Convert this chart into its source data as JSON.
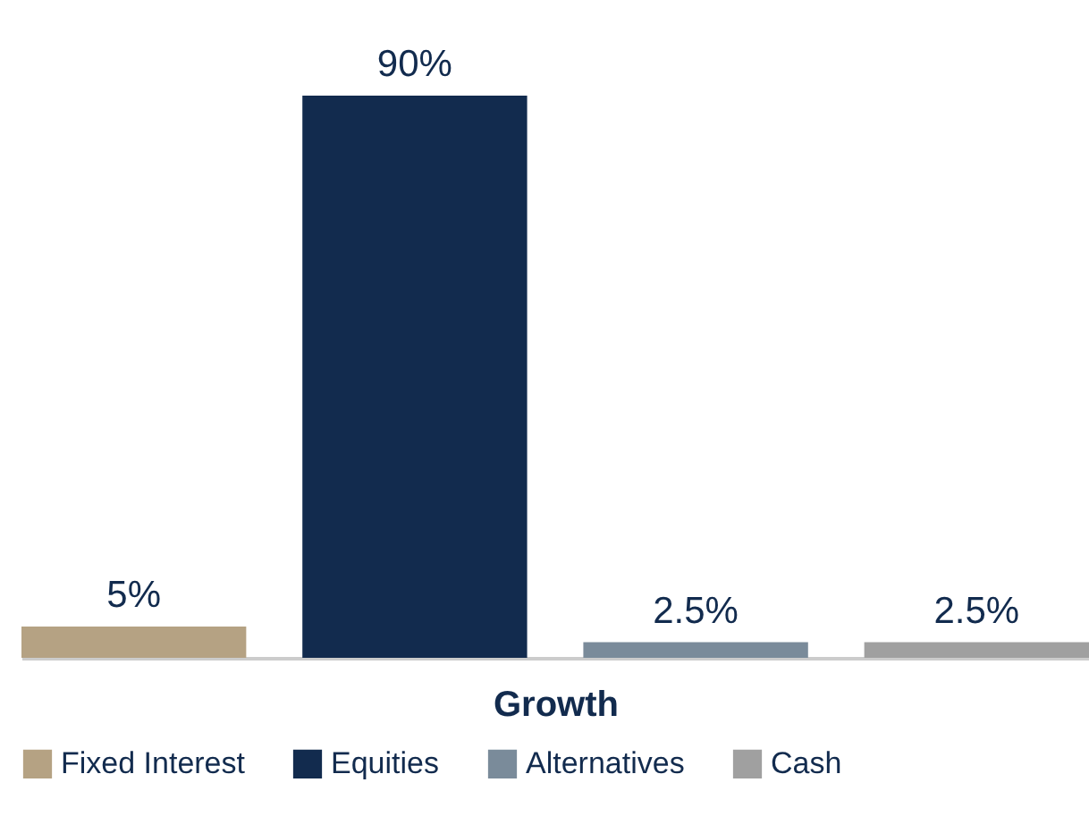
{
  "chart_data": {
    "type": "bar",
    "xlabel": "Growth",
    "categories": [
      null,
      null,
      null,
      null
    ],
    "series": [
      {
        "name": "Fixed Interest",
        "color": "#b5a283",
        "values": [
          5,
          null,
          null,
          null
        ],
        "value_labels": [
          "5%",
          null,
          null,
          null
        ]
      },
      {
        "name": "Equities",
        "color": "#122b4e",
        "values": [
          null,
          90,
          null,
          null
        ],
        "value_labels": [
          null,
          "90%",
          null,
          null
        ]
      },
      {
        "name": "Alternatives",
        "color": "#7a8b9a",
        "values": [
          null,
          null,
          2.5,
          null
        ],
        "value_labels": [
          null,
          null,
          "2.5%",
          null
        ]
      },
      {
        "name": "Cash",
        "color": "#a0a0a0",
        "values": [
          null,
          null,
          null,
          2.5
        ],
        "value_labels": [
          null,
          null,
          null,
          "2.5%"
        ]
      }
    ],
    "stacked": true,
    "legend": "bottom"
  }
}
